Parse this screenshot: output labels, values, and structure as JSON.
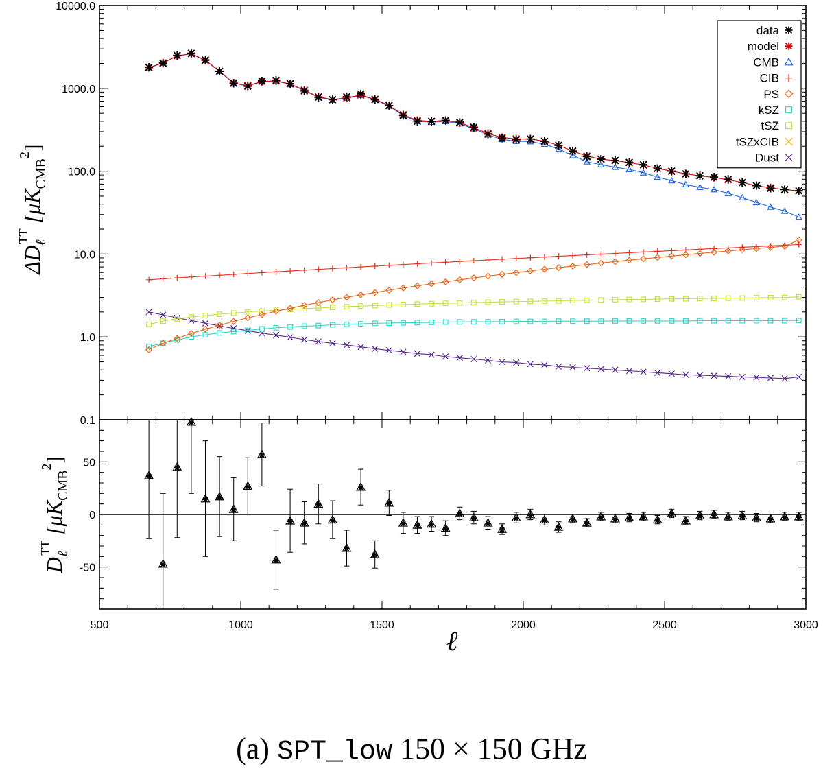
{
  "chart_data": [
    {
      "type": "line",
      "panel": "top",
      "ylabel": "ΔD_ℓ^TT [μK_CMB^2]",
      "yscale": "log",
      "ylim": [
        0.1,
        10000
      ],
      "xlim": [
        500,
        3000
      ],
      "y_tick_labels": [
        "10000.0",
        "1000.0",
        "100.0",
        "10.0",
        "1.0",
        "0.1"
      ],
      "y_tick_values": [
        10000,
        1000,
        100,
        10,
        1,
        0.1
      ],
      "legend_position": "top-right",
      "x": [
        675,
        725,
        775,
        825,
        875,
        925,
        975,
        1025,
        1075,
        1125,
        1175,
        1225,
        1275,
        1325,
        1375,
        1425,
        1475,
        1525,
        1575,
        1625,
        1675,
        1725,
        1775,
        1825,
        1875,
        1925,
        1975,
        2025,
        2075,
        2125,
        2175,
        2225,
        2275,
        2325,
        2375,
        2425,
        2475,
        2525,
        2575,
        2625,
        2675,
        2725,
        2775,
        2825,
        2875,
        2925,
        2975
      ],
      "series": [
        {
          "name": "data",
          "color": "#000000",
          "marker": "asterisk",
          "values": [
            1800,
            2000,
            2500,
            2650,
            2200,
            1600,
            1150,
            1060,
            1230,
            1250,
            1140,
            930,
            780,
            730,
            790,
            860,
            730,
            620,
            470,
            400,
            400,
            410,
            390,
            340,
            280,
            250,
            240,
            245,
            230,
            205,
            175,
            150,
            140,
            135,
            128,
            120,
            108,
            100,
            93,
            88,
            85,
            80,
            73,
            67,
            62,
            60,
            58
          ]
        },
        {
          "name": "model",
          "color": "#e00000",
          "marker": "asterisk",
          "values": [
            1780,
            2030,
            2470,
            2620,
            2180,
            1610,
            1160,
            1080,
            1210,
            1230,
            1130,
            950,
            790,
            730,
            770,
            830,
            740,
            620,
            480,
            410,
            400,
            410,
            385,
            335,
            285,
            255,
            245,
            245,
            230,
            205,
            175,
            152,
            140,
            134,
            127,
            119,
            108,
            100,
            93,
            88,
            84,
            79,
            73,
            67,
            63,
            60,
            58
          ]
        },
        {
          "name": "CMB",
          "color": "#1e64dc",
          "marker": "triangle",
          "values": [
            1770,
            2020,
            2460,
            2610,
            2170,
            1600,
            1150,
            1070,
            1200,
            1220,
            1120,
            940,
            780,
            720,
            760,
            820,
            730,
            610,
            470,
            400,
            390,
            400,
            375,
            325,
            275,
            242,
            230,
            228,
            212,
            185,
            155,
            130,
            120,
            112,
            105,
            96,
            85,
            77,
            69,
            64,
            60,
            54,
            48,
            42,
            37,
            33,
            28
          ]
        },
        {
          "name": "CIB",
          "color": "#e83020",
          "marker": "plus",
          "values": [
            4.9,
            5.03,
            5.16,
            5.29,
            5.42,
            5.55,
            5.69,
            5.83,
            5.97,
            6.11,
            6.25,
            6.4,
            6.54,
            6.69,
            6.84,
            7.0,
            7.15,
            7.31,
            7.47,
            7.64,
            7.8,
            7.97,
            8.14,
            8.31,
            8.49,
            8.67,
            8.85,
            9.03,
            9.21,
            9.4,
            9.59,
            9.79,
            9.98,
            10.18,
            10.38,
            10.59,
            10.8,
            11.01,
            11.22,
            11.44,
            11.66,
            11.88,
            12.1,
            12.33,
            12.56,
            12.79,
            13.03
          ]
        },
        {
          "name": "PS",
          "color": "#e8661c",
          "marker": "diamond",
          "values": [
            0.7,
            0.84,
            0.96,
            1.1,
            1.24,
            1.38,
            1.54,
            1.7,
            1.86,
            2.04,
            2.22,
            2.41,
            2.6,
            2.8,
            3.01,
            3.22,
            3.44,
            3.67,
            3.9,
            4.14,
            4.38,
            4.63,
            4.89,
            5.15,
            5.42,
            5.7,
            5.98,
            6.26,
            6.56,
            6.86,
            7.16,
            7.47,
            7.79,
            8.11,
            8.44,
            8.77,
            9.11,
            9.46,
            9.81,
            10.17,
            10.53,
            10.9,
            11.28,
            11.66,
            12.05,
            12.44,
            14.8
          ]
        },
        {
          "name": "kSZ",
          "color": "#30d8c8",
          "marker": "square",
          "values": [
            0.77,
            0.84,
            0.92,
            1.0,
            1.06,
            1.12,
            1.16,
            1.2,
            1.25,
            1.29,
            1.32,
            1.35,
            1.37,
            1.4,
            1.42,
            1.44,
            1.46,
            1.47,
            1.48,
            1.49,
            1.5,
            1.51,
            1.52,
            1.52,
            1.53,
            1.53,
            1.54,
            1.54,
            1.54,
            1.55,
            1.55,
            1.55,
            1.55,
            1.56,
            1.56,
            1.56,
            1.56,
            1.56,
            1.56,
            1.57,
            1.57,
            1.57,
            1.57,
            1.57,
            1.57,
            1.57,
            1.58
          ]
        },
        {
          "name": "tSZ",
          "color": "#c8e03c",
          "marker": "square",
          "values": [
            1.42,
            1.55,
            1.65,
            1.74,
            1.81,
            1.88,
            1.94,
            2.0,
            2.05,
            2.1,
            2.15,
            2.2,
            2.24,
            2.28,
            2.32,
            2.36,
            2.39,
            2.43,
            2.46,
            2.49,
            2.52,
            2.55,
            2.57,
            2.6,
            2.62,
            2.65,
            2.67,
            2.69,
            2.71,
            2.73,
            2.75,
            2.77,
            2.79,
            2.81,
            2.83,
            2.84,
            2.86,
            2.88,
            2.89,
            2.91,
            2.92,
            2.94,
            2.95,
            2.97,
            2.98,
            2.99,
            3.05
          ]
        },
        {
          "name": "tSZxCIB",
          "color": "#f0b800",
          "marker": "x",
          "values": null
        },
        {
          "name": "Dust",
          "color": "#5a2c8c",
          "marker": "x",
          "values": [
            2.0,
            1.84,
            1.7,
            1.58,
            1.46,
            1.36,
            1.27,
            1.19,
            1.11,
            1.05,
            0.99,
            0.93,
            0.88,
            0.84,
            0.8,
            0.76,
            0.72,
            0.69,
            0.66,
            0.63,
            0.61,
            0.58,
            0.56,
            0.54,
            0.52,
            0.5,
            0.49,
            0.47,
            0.46,
            0.44,
            0.43,
            0.42,
            0.41,
            0.4,
            0.39,
            0.38,
            0.37,
            0.36,
            0.35,
            0.345,
            0.34,
            0.335,
            0.33,
            0.325,
            0.32,
            0.315,
            0.33
          ]
        }
      ]
    },
    {
      "type": "scatter",
      "panel": "bottom",
      "ylabel": "D_ℓ^TT [μK_CMB^2]",
      "xlabel": "ℓ",
      "xlim": [
        500,
        3000
      ],
      "ylim": [
        -90,
        90
      ],
      "y_tick_labels": [
        "50",
        "0",
        "-50"
      ],
      "y_tick_values": [
        50,
        0,
        -50
      ],
      "x_tick_labels": [
        "500",
        "1000",
        "1500",
        "2000",
        "2500",
        "3000"
      ],
      "x_tick_values": [
        500,
        1000,
        1500,
        2000,
        2500,
        3000
      ],
      "zero_line": true,
      "x": [
        675,
        725,
        775,
        825,
        875,
        925,
        975,
        1025,
        1075,
        1125,
        1175,
        1225,
        1275,
        1325,
        1375,
        1425,
        1475,
        1525,
        1575,
        1625,
        1675,
        1725,
        1775,
        1825,
        1875,
        1925,
        1975,
        2025,
        2075,
        2125,
        2175,
        2225,
        2275,
        2325,
        2375,
        2425,
        2475,
        2525,
        2575,
        2625,
        2675,
        2725,
        2775,
        2825,
        2875,
        2925,
        2975
      ],
      "values": [
        37,
        -47,
        45,
        88,
        15,
        17,
        5,
        27,
        57,
        -43,
        -6,
        -8,
        10,
        -5,
        -32,
        26,
        -38,
        11,
        -8,
        -10,
        -9,
        -13,
        1,
        -3,
        -8,
        -14,
        -3,
        0,
        -5,
        -12,
        -4,
        -8,
        -2,
        -4,
        -3,
        -2,
        -5,
        1,
        -6,
        -1,
        0,
        -2,
        -1,
        -3,
        -4,
        -2,
        -2
      ],
      "errors": [
        60,
        67,
        67,
        68,
        55,
        38,
        30,
        27,
        30,
        28,
        30,
        20,
        19,
        18,
        17,
        17,
        13,
        12,
        10,
        8,
        7,
        7,
        6,
        6,
        6,
        5,
        5,
        5,
        5,
        5,
        4,
        4,
        4,
        4,
        4,
        4,
        4,
        4,
        4,
        4,
        4,
        4,
        4,
        4,
        4,
        4,
        4
      ]
    }
  ],
  "caption": {
    "prefix": "(a)",
    "dataset": "SPT_low",
    "freq": "150 × 150 GHz"
  },
  "axis_text": {
    "top_ylabel_main": "ΔD",
    "top_ylabel_sub": "ℓ",
    "top_ylabel_sup": "TT",
    "top_ylabel_unit": "[μK",
    "top_ylabel_unit_sub": "CMB",
    "top_ylabel_unit_sup": "2",
    "top_ylabel_close": "]",
    "bottom_ylabel_main": "D",
    "xlabel": "ℓ"
  }
}
